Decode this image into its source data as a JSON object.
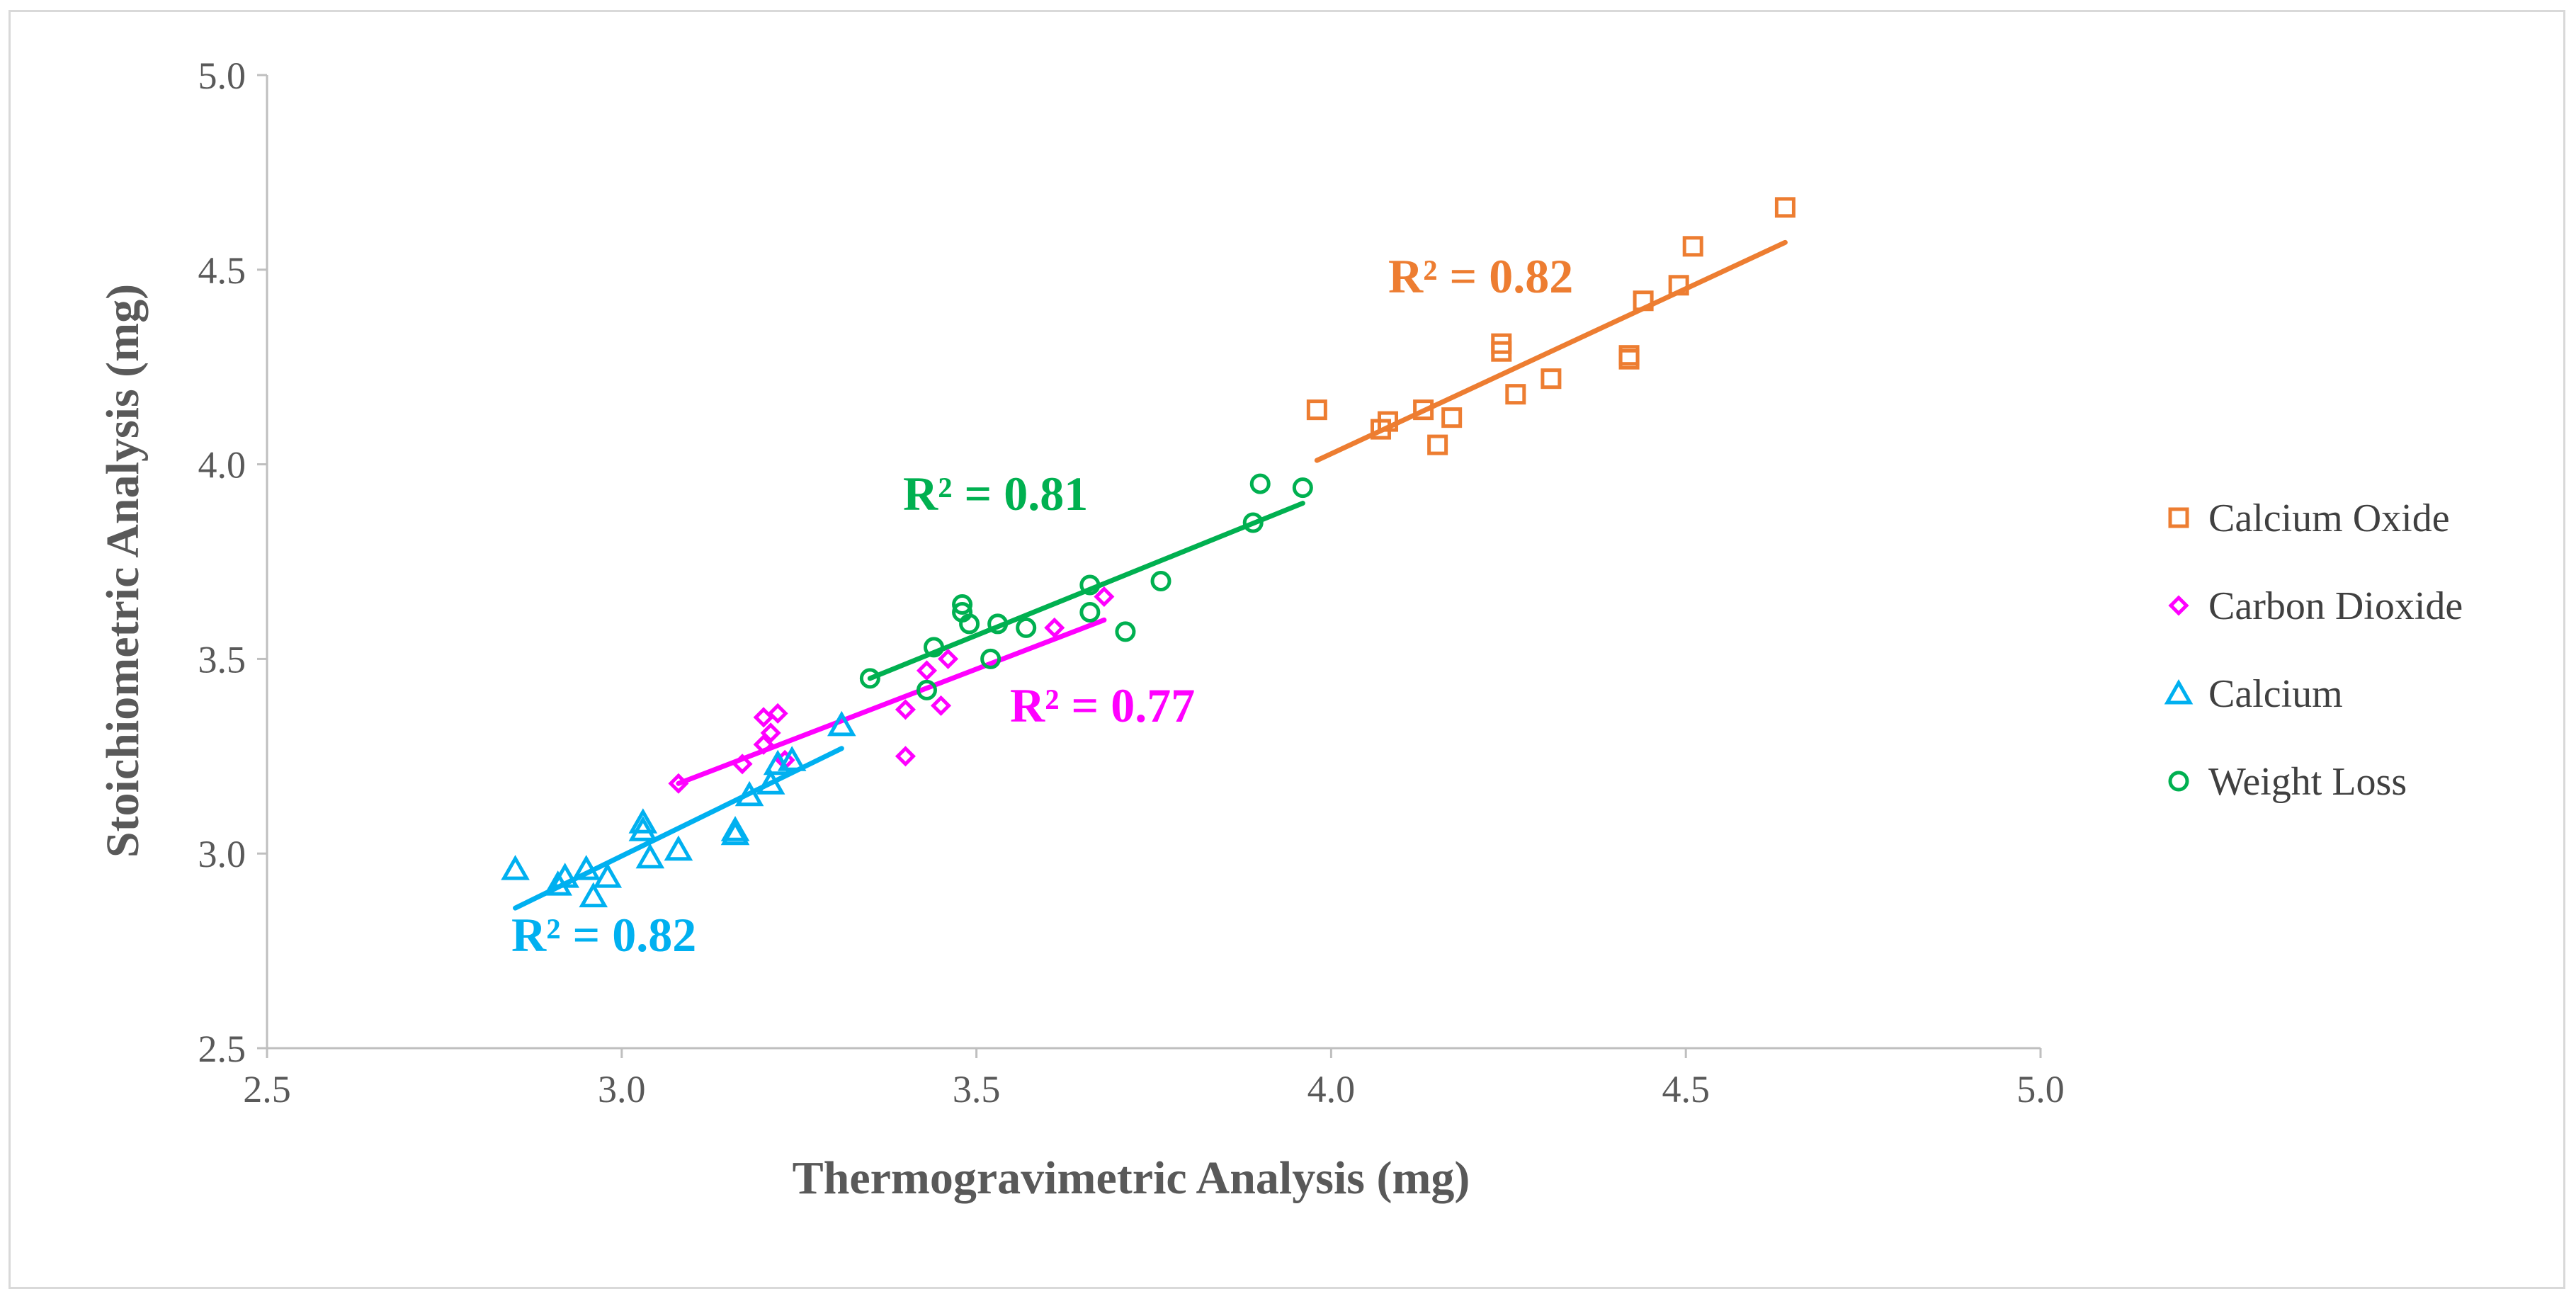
{
  "chart_data": {
    "type": "scatter",
    "title": "",
    "xlabel": "Thermogravimetric Analysis (mg)",
    "ylabel": "Stoichiometric Analysis (mg)",
    "xlim": [
      2.5,
      5.0
    ],
    "ylim": [
      2.5,
      5.0
    ],
    "x_ticks": [
      2.5,
      3.0,
      3.5,
      4.0,
      4.5,
      5.0
    ],
    "y_ticks": [
      2.5,
      3.0,
      3.5,
      4.0,
      4.5,
      5.0
    ],
    "x_tick_labels": [
      "2.5",
      "3.0",
      "3.5",
      "4.0",
      "4.5",
      "5.0"
    ],
    "y_tick_labels": [
      "2.5",
      "3.0",
      "3.5",
      "4.0",
      "4.5",
      "5.0"
    ],
    "grid": false,
    "legend_position": "right",
    "series": [
      {
        "name": "Calcium Oxide",
        "marker": "square",
        "color": "#ED7D31",
        "points": [
          [
            3.98,
            4.14
          ],
          [
            4.07,
            4.09
          ],
          [
            4.08,
            4.11
          ],
          [
            4.13,
            4.14
          ],
          [
            4.15,
            4.05
          ],
          [
            4.17,
            4.12
          ],
          [
            4.24,
            4.31
          ],
          [
            4.24,
            4.29
          ],
          [
            4.26,
            4.18
          ],
          [
            4.31,
            4.22
          ],
          [
            4.42,
            4.28
          ],
          [
            4.42,
            4.27
          ],
          [
            4.44,
            4.42
          ],
          [
            4.49,
            4.46
          ],
          [
            4.51,
            4.56
          ],
          [
            4.64,
            4.66
          ]
        ],
        "trendline": {
          "x": [
            3.98,
            4.64
          ],
          "y": [
            4.01,
            4.57
          ]
        },
        "r2_label": "R² = 0.82"
      },
      {
        "name": "Carbon Dioxide",
        "marker": "diamond",
        "color": "#FF00FF",
        "points": [
          [
            3.08,
            3.18
          ],
          [
            3.17,
            3.23
          ],
          [
            3.2,
            3.28
          ],
          [
            3.2,
            3.35
          ],
          [
            3.21,
            3.31
          ],
          [
            3.22,
            3.36
          ],
          [
            3.23,
            3.24
          ],
          [
            3.4,
            3.25
          ],
          [
            3.4,
            3.37
          ],
          [
            3.43,
            3.47
          ],
          [
            3.45,
            3.38
          ],
          [
            3.46,
            3.5
          ],
          [
            3.61,
            3.58
          ],
          [
            3.68,
            3.66
          ]
        ],
        "trendline": {
          "x": [
            3.08,
            3.68
          ],
          "y": [
            3.18,
            3.6
          ]
        },
        "r2_label": "R² = 0.77"
      },
      {
        "name": "Calcium",
        "marker": "triangle",
        "color": "#00B0F0",
        "points": [
          [
            2.85,
            2.96
          ],
          [
            2.91,
            2.92
          ],
          [
            2.92,
            2.94
          ],
          [
            2.95,
            2.96
          ],
          [
            2.96,
            2.89
          ],
          [
            2.98,
            2.94
          ],
          [
            3.03,
            3.08
          ],
          [
            3.03,
            3.06
          ],
          [
            3.04,
            2.99
          ],
          [
            3.08,
            3.01
          ],
          [
            3.16,
            3.06
          ],
          [
            3.16,
            3.05
          ],
          [
            3.18,
            3.15
          ],
          [
            3.21,
            3.18
          ],
          [
            3.22,
            3.23
          ],
          [
            3.24,
            3.24
          ],
          [
            3.31,
            3.33
          ]
        ],
        "trendline": {
          "x": [
            2.85,
            3.31
          ],
          "y": [
            2.86,
            3.27
          ]
        },
        "r2_label": "R² = 0.82"
      },
      {
        "name": "Weight Loss",
        "marker": "circle",
        "color": "#00B050",
        "points": [
          [
            3.35,
            3.45
          ],
          [
            3.43,
            3.42
          ],
          [
            3.44,
            3.53
          ],
          [
            3.48,
            3.64
          ],
          [
            3.48,
            3.62
          ],
          [
            3.49,
            3.59
          ],
          [
            3.52,
            3.5
          ],
          [
            3.53,
            3.59
          ],
          [
            3.57,
            3.58
          ],
          [
            3.66,
            3.69
          ],
          [
            3.66,
            3.62
          ],
          [
            3.71,
            3.57
          ],
          [
            3.76,
            3.7
          ],
          [
            3.89,
            3.85
          ],
          [
            3.9,
            3.95
          ],
          [
            3.96,
            3.94
          ]
        ],
        "trendline": {
          "x": [
            3.35,
            3.96
          ],
          "y": [
            3.45,
            3.9
          ]
        },
        "r2_label": "R² = 0.81"
      }
    ]
  }
}
